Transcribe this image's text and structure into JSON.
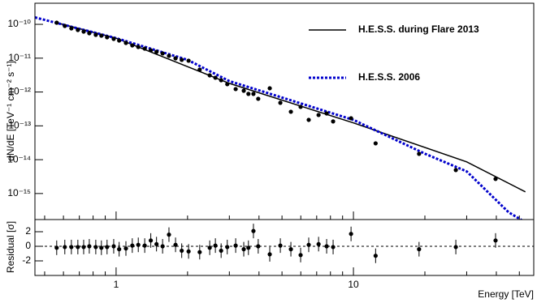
{
  "chart_data": [
    {
      "type": "scatter",
      "xscale": "log",
      "yscale": "log",
      "y_label": "dN/dE [TeV⁻¹ cm⁻² s⁻¹]",
      "xlim": [
        0.455,
        57.5
      ],
      "ylim": [
        1.7e-16,
        4.2e-10
      ],
      "xticks": [
        1,
        10
      ],
      "xminorticks": [
        0.5,
        0.6,
        0.7,
        0.8,
        0.9,
        2,
        3,
        4,
        5,
        6,
        7,
        8,
        9,
        20,
        30,
        40,
        50
      ],
      "yticks": [
        {
          "value": 1e-10,
          "label": "10⁻¹⁰"
        },
        {
          "value": 1e-11,
          "label": "10⁻¹¹"
        },
        {
          "value": 1e-12,
          "label": "10⁻¹²"
        },
        {
          "value": 1e-13,
          "label": "10⁻¹³"
        },
        {
          "value": 1e-14,
          "label": "10⁻¹⁴"
        },
        {
          "value": 1e-15,
          "label": "10⁻¹⁵"
        }
      ],
      "legend": "upper right",
      "points": {
        "color": "#000000",
        "x": [
          0.562,
          0.608,
          0.648,
          0.69,
          0.73,
          0.771,
          0.821,
          0.867,
          0.916,
          0.977,
          1.03,
          1.1,
          1.17,
          1.24,
          1.32,
          1.4,
          1.48,
          1.57,
          1.67,
          1.78,
          1.89,
          2.02,
          2.25,
          2.48,
          2.62,
          2.77,
          2.94,
          3.19,
          3.45,
          3.61,
          3.79,
          3.97,
          4.44,
          4.92,
          5.45,
          5.99,
          6.48,
          7.13,
          7.71,
          8.21,
          9.77,
          12.4,
          18.9,
          27.0,
          39.7
        ],
        "values": [
          1.12e-10,
          8.96e-11,
          7.6e-11,
          6.8e-11,
          6.1e-11,
          5.46e-11,
          4.89e-11,
          4.63e-11,
          4.14e-11,
          3.71e-11,
          3.32e-11,
          2.82e-11,
          2.39e-11,
          2.14e-11,
          1.91e-11,
          1.71e-11,
          1.54e-11,
          1.38e-11,
          1.17e-11,
          9.9e-12,
          8.9e-12,
          8.4e-12,
          4.57e-12,
          3.11e-12,
          2.64e-12,
          2.23e-12,
          1.7e-12,
          1.22e-12,
          1.09e-12,
          8.8e-13,
          8.8e-13,
          6.3e-13,
          1.29e-12,
          4.8e-13,
          2.61e-13,
          3.63e-13,
          1.5e-13,
          2.09e-13,
          2.33e-13,
          1.35e-13,
          1.68e-13,
          3.04e-14,
          1.49e-14,
          4.94e-15,
          2.7e-15
        ]
      },
      "series": [
        {
          "name": "H.E.S.S. during Flare 2013",
          "color": "#000000",
          "style": "solid",
          "x": [
            0.56,
            1,
            3,
            10,
            30,
            53
          ],
          "values": [
            1.12e-10,
            3.9e-11,
            1.8e-12,
            1.22e-13,
            8.6e-15,
            1.12e-15
          ]
        },
        {
          "name": "H.E.S.S. 2006",
          "color": "#0000cc",
          "style": "dotted",
          "x": [
            0.455,
            1,
            2,
            3,
            10,
            20,
            30,
            45,
            57.5
          ],
          "values": [
            1.6e-10,
            3.9e-11,
            8.9e-12,
            2.1e-12,
            1.5e-13,
            1.5e-14,
            4.5e-15,
            2.8e-16,
            1e-16
          ]
        }
      ]
    },
    {
      "type": "scatter",
      "xscale": "log",
      "y_label": "Residual [σ]",
      "x_label": "Energy [TeV]",
      "xlim": [
        0.455,
        57.5
      ],
      "ylim": [
        -4,
        3.67
      ],
      "xticks": [
        1,
        10
      ],
      "xminorticks": [
        0.5,
        0.6,
        0.7,
        0.8,
        0.9,
        2,
        3,
        4,
        5,
        6,
        7,
        8,
        9,
        20,
        30,
        40,
        50
      ],
      "yticks": [
        -2,
        0,
        2
      ],
      "reference_line": 0,
      "points": {
        "color": "#000000",
        "x": [
          0.562,
          0.608,
          0.648,
          0.69,
          0.73,
          0.771,
          0.821,
          0.867,
          0.916,
          0.977,
          1.03,
          1.1,
          1.17,
          1.24,
          1.32,
          1.4,
          1.48,
          1.57,
          1.67,
          1.78,
          1.89,
          2.02,
          2.25,
          2.48,
          2.62,
          2.77,
          2.94,
          3.19,
          3.45,
          3.61,
          3.79,
          3.97,
          4.44,
          4.92,
          5.45,
          5.99,
          6.48,
          7.13,
          7.71,
          8.21,
          9.77,
          12.4,
          18.9,
          27.0,
          39.7
        ],
        "values": [
          -0.2,
          -0.1,
          -0.1,
          -0.1,
          -0.1,
          0,
          -0.1,
          -0.2,
          -0.1,
          0,
          -0.4,
          -0.3,
          0.1,
          0.2,
          0.1,
          0.8,
          0.3,
          0,
          1.6,
          0.2,
          -0.6,
          -0.7,
          -0.8,
          -0.2,
          0.1,
          -0.6,
          -0.1,
          0.1,
          -0.4,
          -0.2,
          2.1,
          0,
          -1.1,
          0.1,
          -0.4,
          -1.2,
          0.2,
          0.3,
          0,
          -0.1,
          1.7,
          -1.3,
          -0.4,
          -0.1,
          0.8
        ],
        "errors": [
          1,
          1,
          1,
          1,
          1,
          1,
          1,
          1,
          1,
          1,
          1,
          1,
          1,
          1,
          1,
          1,
          1,
          1,
          1,
          1,
          1,
          1,
          1,
          1,
          1,
          1,
          1,
          1,
          1,
          1,
          1,
          1,
          1,
          1,
          1,
          1,
          1,
          1,
          1,
          1,
          1,
          1,
          1,
          1,
          1
        ]
      }
    }
  ]
}
